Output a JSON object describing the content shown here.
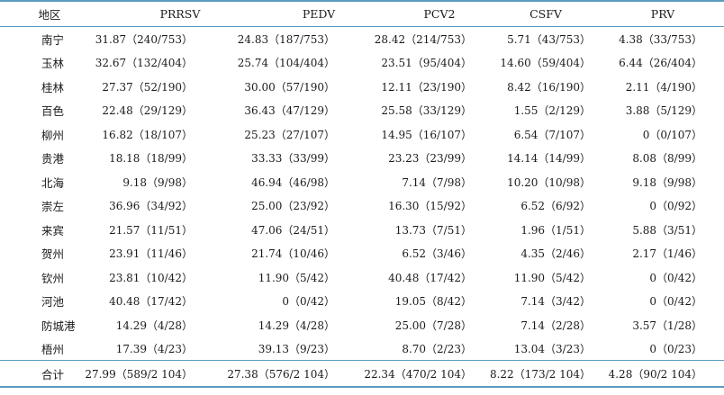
{
  "headers": [
    "地区",
    "PRRSV",
    "PEDV",
    "PCV2",
    "CSFV",
    "PRV"
  ],
  "rows": [
    [
      "南宁",
      "31.87（240/753）",
      "24.83（187/753）",
      "28.42（214/753）",
      "5.71（43/753）",
      "4.38（33/753）"
    ],
    [
      "玉林",
      "32.67（132/404）",
      "25.74（104/404）",
      "23.51（95/404）",
      "14.60（59/404）",
      "6.44（26/404）"
    ],
    [
      "桂林",
      "27.37（52/190）",
      "30.00（57/190）",
      "12.11（23/190）",
      "8.42（16/190）",
      "2.11（4/190）"
    ],
    [
      "百色",
      "22.48（29/129）",
      "36.43（47/129）",
      "25.58（33/129）",
      "1.55（2/129）",
      "3.88（5/129）"
    ],
    [
      "柳州",
      "16.82（18/107）",
      "25.23（27/107）",
      "14.95（16/107）",
      "6.54（7/107）",
      "0（0/107）"
    ],
    [
      "贵港",
      "18.18（18/99）",
      "33.33（33/99）",
      "23.23（23/99）",
      "14.14（14/99）",
      "8.08（8/99）"
    ],
    [
      "北海",
      "9.18（9/98）",
      "46.94（46/98）",
      "7.14（7/98）",
      "10.20（10/98）",
      "9.18（9/98）"
    ],
    [
      "崇左",
      "36.96（34/92）",
      "25.00（23/92）",
      "16.30（15/92）",
      "6.52（6/92）",
      "0（0/92）"
    ],
    [
      "来宾",
      "21.57（11/51）",
      "47.06（24/51）",
      "13.73（7/51）",
      "1.96（1/51）",
      "5.88（3/51）"
    ],
    [
      "贺州",
      "23.91（11/46）",
      "21.74（10/46）",
      "6.52（3/46）",
      "4.35（2/46）",
      "2.17（1/46）"
    ],
    [
      "钦州",
      "23.81（10/42）",
      "11.90（5/42）",
      "40.48（17/42）",
      "11.90（5/42）",
      "0（0/42）"
    ],
    [
      "河池",
      "40.48（17/42）",
      "0（0/42）",
      "19.05（8/42）",
      "7.14（3/42）",
      "0（0/42）"
    ],
    [
      "防城港",
      "14.29（4/28）",
      "14.29（4/28）",
      "25.00（7/28）",
      "7.14（2/28）",
      "3.57（1/28）"
    ],
    [
      "梧州",
      "17.39（4/23）",
      "39.13（9/23）",
      "8.70（2/23）",
      "13.04（3/23）",
      "0（0/23）"
    ]
  ],
  "total": [
    "合计",
    "27.99（589/2 104）",
    "27.38（576/2 104）",
    "22.34（470/2 104）",
    "8.22（173/2 104）",
    "4.28（90/2 104）"
  ],
  "rule_color": "#5a9bc0"
}
